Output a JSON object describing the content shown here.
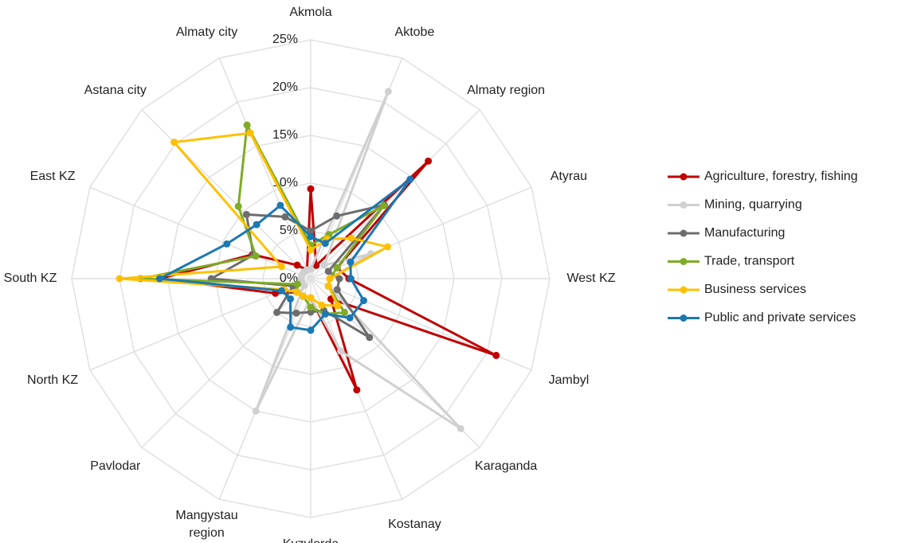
{
  "chart_data": {
    "type": "radar",
    "categories": [
      "Akmola",
      "Aktobe",
      "Almaty region",
      "Atyrau",
      "West KZ",
      "Jambyl",
      "Karaganda",
      "Kostanay",
      "Kyzylorda",
      "Mangystau region",
      "Pavlodar",
      "North KZ",
      "South KZ",
      "East KZ",
      "Astana city",
      "Almaty city"
    ],
    "ylim": [
      0,
      25
    ],
    "yticks": [
      {
        "value": 0,
        "label": "0%"
      },
      {
        "value": 5,
        "label": "5%"
      },
      {
        "value": 10,
        "label": "10%"
      },
      {
        "value": 15,
        "label": "15%"
      },
      {
        "value": 20,
        "label": "20%"
      },
      {
        "value": 25,
        "label": "25%"
      }
    ],
    "grid": true,
    "legend": "right",
    "series": [
      {
        "name": "Agriculture, forestry, fishing",
        "color": "#c00000",
        "values": [
          9.4,
          1.5,
          17.4,
          3,
          4,
          21,
          3,
          12.6,
          2,
          2,
          2,
          4,
          15.8,
          6.6,
          2,
          1
        ]
      },
      {
        "name": "Mining, quarrying",
        "color": "#d0d0d0",
        "values": [
          1,
          21.2,
          2,
          6.8,
          2,
          2,
          22.2,
          8.2,
          2,
          15,
          1,
          1,
          1,
          1,
          1,
          1
        ]
      },
      {
        "name": "Manufacturing",
        "color": "#6d6d6d",
        "values": [
          5,
          7.1,
          10.9,
          2,
          3,
          3,
          8.7,
          3.6,
          3.5,
          3.9,
          5,
          2,
          10.4,
          6.5,
          9.5,
          7
        ]
      },
      {
        "name": "Trade, transport",
        "color": "#7fab26",
        "values": [
          3.5,
          5,
          10.8,
          3,
          2,
          2,
          5,
          4,
          3,
          2,
          2,
          1.5,
          17.8,
          6.2,
          10.7,
          17.4
        ]
      },
      {
        "name": "Business services",
        "color": "#ffc000",
        "values": [
          3,
          4.5,
          6,
          8.7,
          2,
          2,
          4,
          3,
          2,
          2,
          2,
          3,
          20,
          3.3,
          20.2,
          16.5
        ]
      },
      {
        "name": "Public and private services",
        "color": "#1a78b2",
        "values": [
          4.4,
          4,
          14.7,
          4.5,
          4.2,
          6,
          5.8,
          4,
          5.4,
          5.5,
          3,
          3.3,
          15.8,
          9.5,
          8,
          8.3
        ]
      }
    ]
  }
}
